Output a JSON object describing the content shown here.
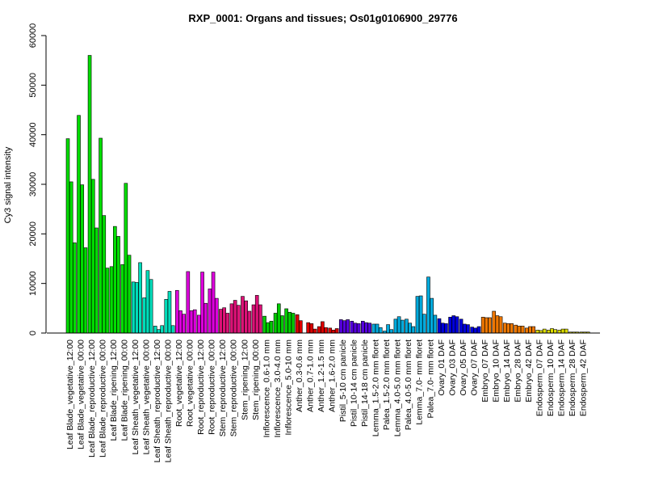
{
  "chart_data": {
    "type": "bar",
    "title": "RXP_0001: Organs and tissues; Os01g0106900_29776",
    "xlabel": "",
    "ylabel": "Cy3 signal intensity",
    "ylim": [
      0,
      60000
    ],
    "yticks": [
      "0",
      "10000",
      "20000",
      "30000",
      "40000",
      "50000",
      "60000"
    ],
    "grid": false,
    "groups": [
      {
        "label": "Leaf Blade_vegetative_12:00",
        "color": "#00dd00",
        "values": [
          39200,
          30500,
          18200
        ]
      },
      {
        "label": "Leaf Blade_vegetative_00:00",
        "color": "#00dd00",
        "values": [
          43900,
          29900,
          17200
        ]
      },
      {
        "label": "Leaf Blade_reproductive_12:00",
        "color": "#00dd00",
        "values": [
          56000,
          31000,
          21200
        ]
      },
      {
        "label": "Leaf Blade_reproductive_00:00",
        "color": "#00dd00",
        "values": [
          39300,
          23700,
          13100
        ]
      },
      {
        "label": "Leaf Blade_ripening_12:00",
        "color": "#00dd00",
        "values": [
          13400,
          21500,
          19500
        ]
      },
      {
        "label": "Leaf Blade_ripening_00:00",
        "color": "#00dd00",
        "values": [
          13800,
          30200,
          15700
        ]
      },
      {
        "label": "Leaf Sheath_vegetative_12:00",
        "color": "#00ddbb",
        "values": [
          10300,
          10200,
          14200
        ]
      },
      {
        "label": "Leaf Sheath_vegetative_00:00",
        "color": "#00ddbb",
        "values": [
          7100,
          12600,
          10800
        ]
      },
      {
        "label": "Leaf Sheath_reproductive_12:00",
        "color": "#00ddbb",
        "values": [
          1400,
          700,
          1500
        ]
      },
      {
        "label": "Leaf Sheath_reproductive_00:00",
        "color": "#00ddbb",
        "values": [
          6800,
          8400,
          1500
        ]
      },
      {
        "label": "Root_vegetative_12:00",
        "color": "#dd00dd",
        "values": [
          8600,
          4500,
          3800
        ]
      },
      {
        "label": "Root_vegetative_00:00",
        "color": "#dd00dd",
        "values": [
          12400,
          4500,
          4700
        ]
      },
      {
        "label": "Root_reproductive_12:00",
        "color": "#dd00dd",
        "values": [
          3600,
          12300,
          6000
        ]
      },
      {
        "label": "Root_reproductive_00:00",
        "color": "#dd00dd",
        "values": [
          8900,
          12300,
          7000
        ]
      },
      {
        "label": "Stem_reproductive_12:00",
        "color": "#dd1177",
        "values": [
          4800,
          5100,
          4000
        ]
      },
      {
        "label": "Stem_reproductive_00:00",
        "color": "#dd1177",
        "values": [
          5900,
          6600,
          5600
        ]
      },
      {
        "label": "Stem_ripening_12:00",
        "color": "#dd1177",
        "values": [
          7400,
          6500,
          4400
        ]
      },
      {
        "label": "Stem_ripening_00:00",
        "color": "#dd1177",
        "values": [
          5700,
          7600,
          5700
        ]
      },
      {
        "label": "Inflorescence_0.6-1.0 mm",
        "color": "#00cc00",
        "values": [
          3400,
          2100,
          2400
        ]
      },
      {
        "label": "Inflorescence_3.0-4.0 mm",
        "color": "#00cc00",
        "values": [
          4000,
          5900,
          3500
        ]
      },
      {
        "label": "Inflorescence_5.0-10 mm",
        "color": "#00cc00",
        "values": [
          4900,
          4200,
          4000
        ]
      },
      {
        "label": "Anther_0.3-0.6 mm",
        "color": "#dd0000",
        "values": [
          3700,
          2500
        ]
      },
      {
        "label": "Anther_0.7-1.0 mm",
        "color": "#dd0000",
        "values": [
          2100,
          1900,
          800
        ]
      },
      {
        "label": "Anther_1.2-1.5 mm",
        "color": "#dd0000",
        "values": [
          1300,
          2300,
          1100
        ]
      },
      {
        "label": "Anther_1.6-2.0 mm",
        "color": "#dd0000",
        "values": [
          1000,
          600,
          900
        ]
      },
      {
        "label": "Pistil_5-10 cm panicle",
        "color": "#5500dd",
        "values": [
          2700,
          2500,
          2700
        ]
      },
      {
        "label": "Pistil_10-14 cm panicle",
        "color": "#5500dd",
        "values": [
          2400,
          2000,
          1900
        ]
      },
      {
        "label": "Pistil_14-18 cm panicle",
        "color": "#5500dd",
        "values": [
          2400,
          2100,
          2000
        ]
      },
      {
        "label": "Lemma_1.5-2.0 mm floret",
        "color": "#00aadd",
        "values": [
          1800,
          1800,
          1100
        ]
      },
      {
        "label": "Palea_1.5-2.0 mm floret",
        "color": "#00aadd",
        "values": [
          400,
          1700,
          700
        ]
      },
      {
        "label": "Lemma_4.0-5.0 mm floret",
        "color": "#00aadd",
        "values": [
          2800,
          3300,
          2600
        ]
      },
      {
        "label": "Palea_4.0-5.0 mm floret",
        "color": "#00aadd",
        "values": [
          2800,
          2000,
          1300
        ]
      },
      {
        "label": "Lemma_7.0- mm floret",
        "color": "#00aadd",
        "values": [
          7400,
          7500,
          3800
        ]
      },
      {
        "label": "Palea_7.0- mm floret",
        "color": "#00aadd",
        "values": [
          11300,
          7000,
          3600
        ]
      },
      {
        "label": "Ovary_01 DAF",
        "color": "#0000dd",
        "values": [
          2900,
          2000,
          1900
        ]
      },
      {
        "label": "Ovary_03 DAF",
        "color": "#0000dd",
        "values": [
          3200,
          3500,
          3300
        ]
      },
      {
        "label": "Ovary_05 DAF",
        "color": "#0000dd",
        "values": [
          2800,
          1800,
          1700
        ]
      },
      {
        "label": "Ovary_07 DAF",
        "color": "#0000dd",
        "values": [
          1200,
          1000,
          1300
        ]
      },
      {
        "label": "Embryo_07 DAF",
        "color": "#ee7700",
        "values": [
          3200,
          3100,
          3100
        ]
      },
      {
        "label": "Embryo_10 DAF",
        "color": "#ee7700",
        "values": [
          4400,
          3500,
          3300
        ]
      },
      {
        "label": "Embryo_14 DAF",
        "color": "#ee7700",
        "values": [
          2000,
          1900,
          1900
        ]
      },
      {
        "label": "Embryo_28 DAF",
        "color": "#ee7700",
        "values": [
          1600,
          1400,
          1400
        ]
      },
      {
        "label": "Embryo_42 DAF",
        "color": "#ee7700",
        "values": [
          1000,
          1300,
          1300
        ]
      },
      {
        "label": "Endosperm_07 DAF",
        "color": "#dddd00",
        "values": [
          600,
          500,
          800
        ]
      },
      {
        "label": "Endosperm_10 DAF",
        "color": "#dddd00",
        "values": [
          600,
          900,
          700
        ]
      },
      {
        "label": "Endosperm_14 DAF",
        "color": "#dddd00",
        "values": [
          600,
          800,
          800
        ]
      },
      {
        "label": "Endosperm_28 DAF",
        "color": "#dddd00",
        "values": [
          200,
          200,
          200
        ]
      },
      {
        "label": "Endosperm_42 DAF",
        "color": "#dddd00",
        "values": [
          200,
          200,
          200
        ]
      }
    ]
  }
}
